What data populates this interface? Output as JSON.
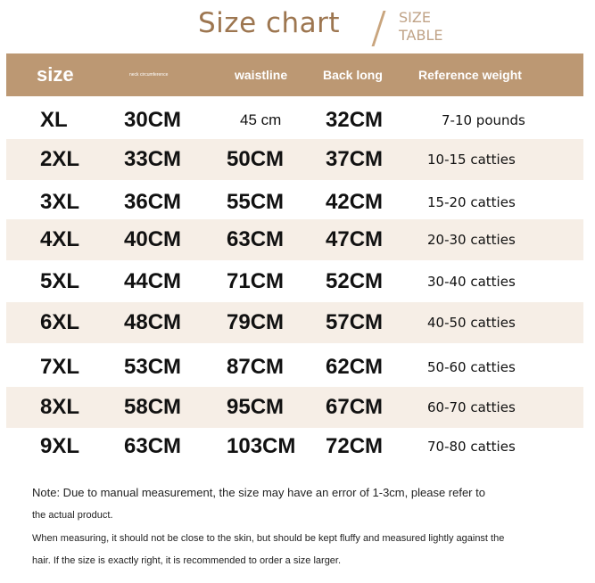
{
  "title": "Size chart",
  "subtitle": [
    "SIZE",
    "TABLE"
  ],
  "headers": [
    "size",
    "neck circumference",
    "waistline",
    "Back long",
    "Reference weight"
  ],
  "rows": [
    [
      "XL",
      "30CM",
      "45 cm",
      "32CM",
      "7-10 pounds"
    ],
    [
      "2XL",
      "33CM",
      "50CM",
      "37CM",
      "10-15 catties"
    ],
    [
      "3XL",
      "36CM",
      "55CM",
      "42CM",
      "15-20 catties"
    ],
    [
      "4XL",
      "40CM",
      "63CM",
      "47CM",
      "20-30 catties"
    ],
    [
      "5XL",
      "44CM",
      "71CM",
      "52CM",
      "30-40 catties"
    ],
    [
      "6XL",
      "48CM",
      "79CM",
      "57CM",
      "40-50 catties"
    ],
    [
      "7XL",
      "53CM",
      "87CM",
      "62CM",
      "50-60 catties"
    ],
    [
      "8XL",
      "58CM",
      "95CM",
      "67CM",
      "60-70 catties"
    ],
    [
      "9XL",
      "63CM",
      "103CM",
      "72CM",
      "70-80 catties"
    ]
  ],
  "notes": [
    "Note: Due to manual measurement, the size may have an error of 1-3cm, please refer to",
    "the actual product.",
    "When measuring, it should not be close to the skin, but should be kept fluffy and measured lightly against the",
    "hair. If the size is exactly right, it is recommended to order a size larger."
  ],
  "colors": {
    "header": "#bc9873",
    "title": "#9d7650",
    "stripe": "#f6eee6"
  }
}
